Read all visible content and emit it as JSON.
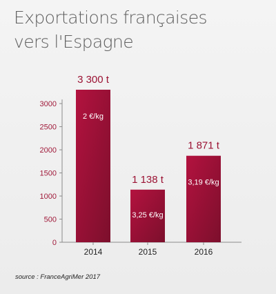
{
  "title_line1": "Exportations françaises",
  "title_line2": "vers l'Espagne",
  "source": "source : FranceAgriMer 2017",
  "colors": {
    "bar_top": "#b3123f",
    "bar_bottom": "#7c0f2c",
    "accent_text": "#9b1233",
    "axis_text": "#a01a3a"
  },
  "chart_data": {
    "type": "bar",
    "categories": [
      "2014",
      "2015",
      "2016"
    ],
    "values": [
      3300,
      1138,
      1871
    ],
    "value_labels": [
      "3 300 t",
      "1 138 t",
      "1 871 t"
    ],
    "price_labels": [
      "2 €/kg",
      "3,25 €/kg",
      "3,19 €/kg"
    ],
    "ylim": [
      0,
      3300
    ],
    "yticks": [
      0,
      500,
      1000,
      1500,
      2000,
      2500,
      3000
    ],
    "grid": false,
    "xlabel": "",
    "ylabel": ""
  }
}
